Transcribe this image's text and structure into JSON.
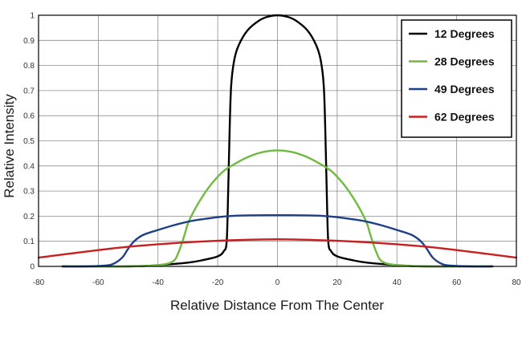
{
  "chart_data": {
    "type": "line",
    "xlabel": "Relative Distance From The Center",
    "ylabel": "Relative Intensity",
    "xlim": [
      -80,
      80
    ],
    "ylim": [
      0,
      1
    ],
    "xticks": [
      "-80",
      "-60",
      "-40",
      "-20",
      "0",
      "20",
      "40",
      "60",
      "80"
    ],
    "yticks": [
      "0",
      "0.1",
      "0.2",
      "0.3",
      "0.4",
      "0.5",
      "0.6",
      "0.7",
      "0.8",
      "0.9",
      "1"
    ],
    "grid": true,
    "legend_position": "top-right",
    "series": [
      {
        "name": "12 Degrees",
        "color": "#000000",
        "points": [
          [
            -72,
            0
          ],
          [
            -50,
            0
          ],
          [
            -40,
            0.005
          ],
          [
            -30,
            0.015
          ],
          [
            -25,
            0.025
          ],
          [
            -20,
            0.04
          ],
          [
            -18,
            0.06
          ],
          [
            -17,
            0.1
          ],
          [
            -16.5,
            0.3
          ],
          [
            -16,
            0.55
          ],
          [
            -15.5,
            0.72
          ],
          [
            -14.5,
            0.82
          ],
          [
            -13,
            0.88
          ],
          [
            -10,
            0.94
          ],
          [
            -6,
            0.98
          ],
          [
            -3,
            0.995
          ],
          [
            0,
            1
          ],
          [
            3,
            0.995
          ],
          [
            6,
            0.98
          ],
          [
            10,
            0.94
          ],
          [
            13,
            0.88
          ],
          [
            14.5,
            0.82
          ],
          [
            15.5,
            0.72
          ],
          [
            16,
            0.55
          ],
          [
            16.5,
            0.3
          ],
          [
            17,
            0.1
          ],
          [
            18,
            0.06
          ],
          [
            20,
            0.04
          ],
          [
            25,
            0.025
          ],
          [
            30,
            0.015
          ],
          [
            40,
            0.005
          ],
          [
            50,
            0
          ],
          [
            72,
            0
          ]
        ]
      },
      {
        "name": "28 Degrees",
        "color": "#6fba3f",
        "points": [
          [
            -72,
            0
          ],
          [
            -50,
            0
          ],
          [
            -40,
            0.005
          ],
          [
            -35,
            0.02
          ],
          [
            -33,
            0.06
          ],
          [
            -31,
            0.13
          ],
          [
            -30,
            0.17
          ],
          [
            -28,
            0.22
          ],
          [
            -25,
            0.28
          ],
          [
            -22,
            0.33
          ],
          [
            -18,
            0.38
          ],
          [
            -14,
            0.41
          ],
          [
            -10,
            0.435
          ],
          [
            -5,
            0.455
          ],
          [
            0,
            0.462
          ],
          [
            5,
            0.455
          ],
          [
            10,
            0.435
          ],
          [
            14,
            0.41
          ],
          [
            18,
            0.38
          ],
          [
            22,
            0.33
          ],
          [
            25,
            0.28
          ],
          [
            28,
            0.22
          ],
          [
            30,
            0.17
          ],
          [
            31,
            0.13
          ],
          [
            33,
            0.06
          ],
          [
            35,
            0.02
          ],
          [
            40,
            0.005
          ],
          [
            50,
            0
          ],
          [
            72,
            0
          ]
        ]
      },
      {
        "name": "49 Degrees",
        "color": "#1f3f8a",
        "points": [
          [
            -72,
            0
          ],
          [
            -65,
            0
          ],
          [
            -58,
            0.003
          ],
          [
            -55,
            0.01
          ],
          [
            -52,
            0.035
          ],
          [
            -50,
            0.07
          ],
          [
            -48,
            0.1
          ],
          [
            -45,
            0.125
          ],
          [
            -40,
            0.145
          ],
          [
            -35,
            0.163
          ],
          [
            -30,
            0.178
          ],
          [
            -25,
            0.188
          ],
          [
            -20,
            0.196
          ],
          [
            -15,
            0.201
          ],
          [
            -10,
            0.203
          ],
          [
            0,
            0.204
          ],
          [
            10,
            0.203
          ],
          [
            15,
            0.201
          ],
          [
            20,
            0.196
          ],
          [
            25,
            0.188
          ],
          [
            30,
            0.178
          ],
          [
            35,
            0.163
          ],
          [
            40,
            0.145
          ],
          [
            45,
            0.125
          ],
          [
            48,
            0.1
          ],
          [
            50,
            0.07
          ],
          [
            52,
            0.035
          ],
          [
            55,
            0.01
          ],
          [
            58,
            0.003
          ],
          [
            65,
            0
          ],
          [
            72,
            0
          ]
        ]
      },
      {
        "name": "62 Degrees",
        "color": "#c8201f",
        "points": [
          [
            -80,
            0.035
          ],
          [
            -70,
            0.05
          ],
          [
            -60,
            0.065
          ],
          [
            -50,
            0.078
          ],
          [
            -40,
            0.088
          ],
          [
            -30,
            0.096
          ],
          [
            -20,
            0.102
          ],
          [
            -10,
            0.106
          ],
          [
            0,
            0.108
          ],
          [
            10,
            0.106
          ],
          [
            20,
            0.102
          ],
          [
            30,
            0.096
          ],
          [
            40,
            0.088
          ],
          [
            50,
            0.078
          ],
          [
            60,
            0.065
          ],
          [
            70,
            0.05
          ],
          [
            80,
            0.035
          ]
        ]
      }
    ]
  }
}
